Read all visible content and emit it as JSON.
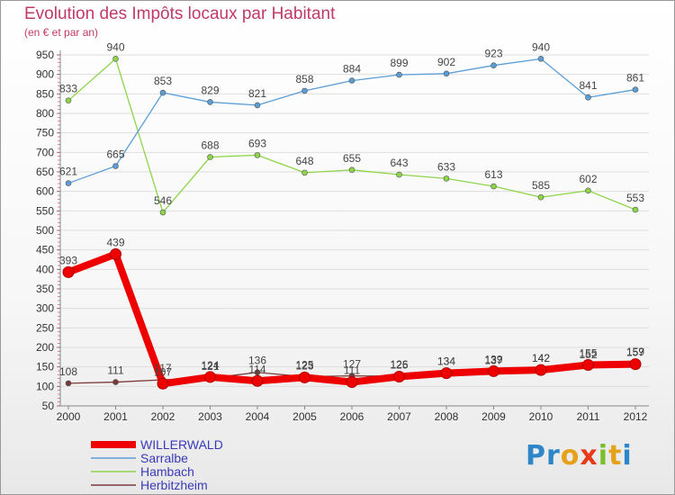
{
  "chart_data": {
    "type": "line",
    "title": "Evolution des Impôts locaux par Habitant",
    "subtitle": "(en € et par an)",
    "x": [
      "2000",
      "2001",
      "2002",
      "2003",
      "2004",
      "2005",
      "2006",
      "2007",
      "2008",
      "2009",
      "2010",
      "2011",
      "2012"
    ],
    "ylim": [
      50,
      950
    ],
    "yticks": [
      50,
      100,
      150,
      200,
      250,
      300,
      350,
      400,
      450,
      500,
      550,
      600,
      650,
      700,
      750,
      800,
      850,
      900,
      950
    ],
    "series": [
      {
        "name": "Herbitzheim",
        "color": "#7a3a3a",
        "values": [
          108,
          111,
          117,
          121,
          136,
          125,
          127,
          126,
          134,
          137,
          142,
          152,
          159
        ]
      },
      {
        "name": "Hambach",
        "color": "#8ed44a",
        "values": [
          833,
          940,
          546,
          688,
          693,
          648,
          655,
          643,
          633,
          613,
          585,
          602,
          553
        ]
      },
      {
        "name": "Sarralbe",
        "color": "#5b9ed6",
        "values": [
          621,
          665,
          853,
          829,
          821,
          858,
          884,
          899,
          902,
          923,
          940,
          841,
          861
        ]
      },
      {
        "name": "WILLERWALD",
        "color": "#ee0000",
        "values": [
          393,
          439,
          107,
          124,
          114,
          123,
          111,
          125,
          134,
          139,
          142,
          155,
          157
        ]
      }
    ],
    "legend": [
      {
        "name": "WILLERWALD",
        "color": "#ee0000"
      },
      {
        "name": "Sarralbe",
        "color": "#5b9ed6"
      },
      {
        "name": "Hambach",
        "color": "#8ed44a"
      },
      {
        "name": "Herbitzheim",
        "color": "#7a3a3a"
      }
    ]
  },
  "logo": {
    "letters": [
      "P",
      "r",
      "o",
      "x",
      "i",
      "t",
      "i"
    ],
    "colors": [
      "#2c86c8",
      "#2c86c8",
      "#e6a11a",
      "#e63a1a",
      "#7abf2a",
      "#e6a11a",
      "#2c86c8"
    ]
  }
}
